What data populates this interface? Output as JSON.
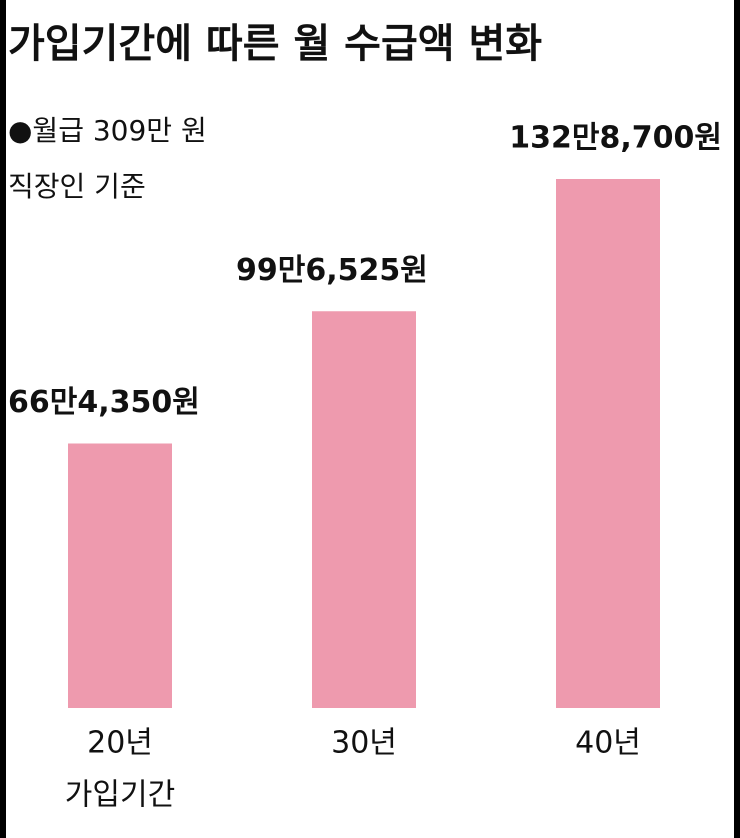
{
  "chart_data": {
    "type": "bar",
    "title": "가입기간에 따른 월 수급액 변화",
    "subtitle": [
      "●월급 309만 원",
      "직장인 기준"
    ],
    "x_label": "가입기간",
    "categories": [
      "20년",
      "30년",
      "40년"
    ],
    "values": [
      664350,
      996525,
      1328700
    ],
    "value_labels": [
      "66만4,350원",
      "99만6,525원",
      "132만8,700원"
    ],
    "color": "#ee9aae"
  }
}
